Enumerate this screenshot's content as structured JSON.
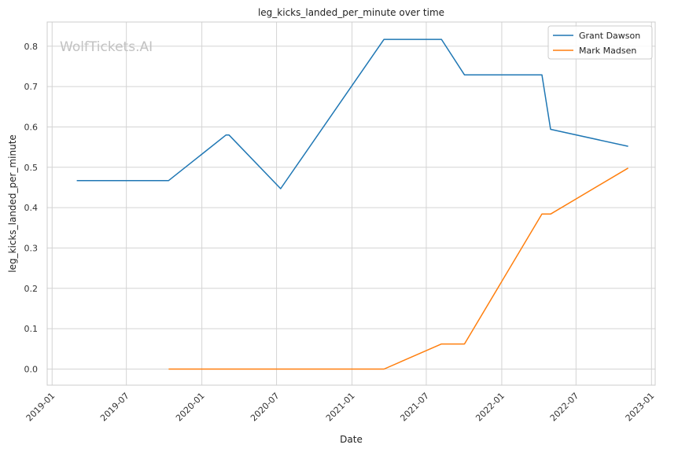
{
  "chart_data": {
    "type": "line",
    "title": "leg_kicks_landed_per_minute over time",
    "xlabel": "Date",
    "ylabel": "leg_kicks_landed_per_minute",
    "watermark": "WolfTickets.AI",
    "x_ticks": [
      "2019-01",
      "2019-07",
      "2020-01",
      "2020-07",
      "2021-01",
      "2021-07",
      "2022-01",
      "2022-07",
      "2023-01"
    ],
    "y_ticks": [
      "0.0",
      "0.1",
      "0.2",
      "0.3",
      "0.4",
      "0.5",
      "0.6",
      "0.7",
      "0.8"
    ],
    "xlim": [
      "2018-12-20",
      "2023-01-10"
    ],
    "ylim": [
      -0.04,
      0.86
    ],
    "grid": true,
    "legend_position": "top-right",
    "series": [
      {
        "name": "Grant Dawson",
        "color": "#1f77b4",
        "points": [
          {
            "x": "2019-03-02",
            "y": 0.467
          },
          {
            "x": "2019-10-12",
            "y": 0.467
          },
          {
            "x": "2020-02-29",
            "y": 0.58
          },
          {
            "x": "2020-03-07",
            "y": 0.58
          },
          {
            "x": "2020-07-11",
            "y": 0.447
          },
          {
            "x": "2021-03-20",
            "y": 0.817
          },
          {
            "x": "2021-08-07",
            "y": 0.817
          },
          {
            "x": "2021-10-02",
            "y": 0.729
          },
          {
            "x": "2022-04-09",
            "y": 0.729
          },
          {
            "x": "2022-04-30",
            "y": 0.594
          },
          {
            "x": "2022-11-05",
            "y": 0.552
          }
        ]
      },
      {
        "name": "Mark Madsen",
        "color": "#ff7f0e",
        "points": [
          {
            "x": "2019-10-12",
            "y": 0.0
          },
          {
            "x": "2021-03-20",
            "y": 0.0
          },
          {
            "x": "2021-08-07",
            "y": 0.062
          },
          {
            "x": "2021-10-02",
            "y": 0.062
          },
          {
            "x": "2022-04-09",
            "y": 0.384
          },
          {
            "x": "2022-04-30",
            "y": 0.384
          },
          {
            "x": "2022-11-05",
            "y": 0.498
          }
        ]
      }
    ]
  }
}
